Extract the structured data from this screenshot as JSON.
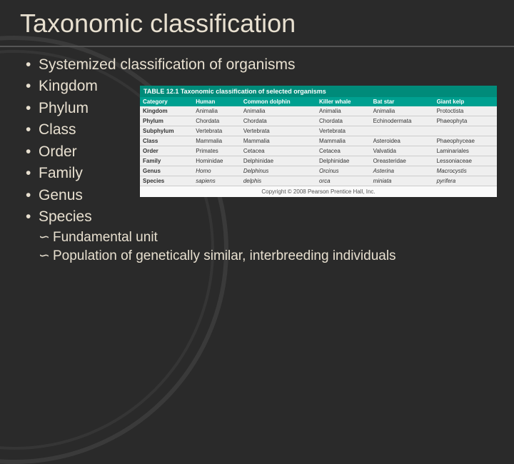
{
  "title": "Taxonomic classification",
  "bullets": [
    "Systemized classification of organisms",
    "Kingdom",
    "Phylum",
    "Class",
    "Order",
    "Family",
    "Genus",
    "Species"
  ],
  "subs": [
    "Fundamental unit",
    "Population of genetically similar, interbreeding individuals"
  ],
  "table": {
    "header": "TABLE 12.1 Taxonomic classification of selected organisms",
    "columns": [
      "Category",
      "Human",
      "Common dolphin",
      "Killer whale",
      "Bat star",
      "Giant kelp"
    ],
    "rows": [
      [
        "Kingdom",
        "Animalia",
        "Animalia",
        "Animalia",
        "Animalia",
        "Protoctista"
      ],
      [
        "Phylum",
        "Chordata",
        "Chordata",
        "Chordata",
        "Echinodermata",
        "Phaeophyta"
      ],
      [
        "Subphylum",
        "Vertebrata",
        "Vertebrata",
        "Vertebrata",
        "",
        ""
      ],
      [
        "Class",
        "Mammalia",
        "Mammalia",
        "Mammalia",
        "Asteroidea",
        "Phaeophyceae"
      ],
      [
        "Order",
        "Primates",
        "Cetacea",
        "Cetacea",
        "Valvatida",
        "Laminariales"
      ],
      [
        "Family",
        "Hominidae",
        "Delphinidae",
        "Delphinidae",
        "Oreasteridae",
        "Lessoniaceae"
      ],
      [
        "Genus",
        "Homo",
        "Delphinus",
        "Orcinus",
        "Asterina",
        "Macrocystis"
      ],
      [
        "Species",
        "sapiens",
        "delphis",
        "orca",
        "miniata",
        "pyrifera"
      ]
    ],
    "italic_row_indices": [
      6,
      7
    ],
    "copyright": "Copyright © 2008 Pearson Prentice Hall, Inc."
  },
  "colors": {
    "background": "#2a2a2a",
    "text": "#e8e0d0",
    "table_header_bg": "#008b7a",
    "table_col_bg": "#00a090"
  }
}
